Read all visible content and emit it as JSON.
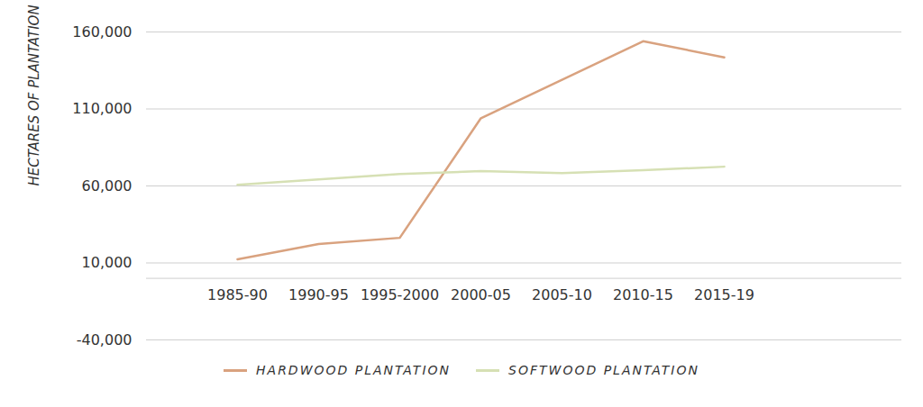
{
  "chart_data": {
    "type": "line",
    "y_label": "HECTARES OF PLANTATION",
    "categories": [
      "1985-90",
      "1990-95",
      "1995-2000",
      "2000-05",
      "2005-10",
      "2010-15",
      "2015-19"
    ],
    "series": [
      {
        "name": "HARDWOOD PLANTATION",
        "color": "#d9a27f",
        "values": [
          12300,
          22300,
          26300,
          104000,
          129000,
          154000,
          143500
        ]
      },
      {
        "name": "SOFTWOOD PLANTATION",
        "color": "#d6e0b4",
        "values": [
          60800,
          64300,
          67800,
          69600,
          68400,
          70200,
          72500
        ]
      }
    ],
    "ylim": [
      -40000,
      160000
    ],
    "yticks": [
      {
        "value": -40000,
        "label": "-40,000"
      },
      {
        "value": 10000,
        "label": "10,000"
      },
      {
        "value": 60000,
        "label": "60,000"
      },
      {
        "value": 110000,
        "label": "110,000"
      },
      {
        "value": 160000,
        "label": "160,000"
      }
    ],
    "grid": true,
    "legend": "bottom"
  }
}
